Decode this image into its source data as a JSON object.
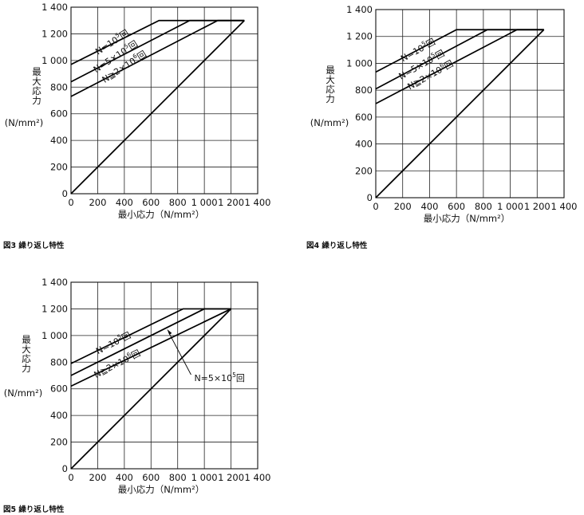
{
  "chart_data": [
    {
      "type": "line",
      "caption": "図3 繰り返し特性",
      "xlabel": "最小応力（N/mm²）",
      "ylabel": "最大応力",
      "yunit": "(N/mm²)",
      "xlim": [
        0,
        1400
      ],
      "ylim": [
        0,
        1400
      ],
      "xticks": [
        "0",
        "200",
        "400",
        "600",
        "800",
        "1 000",
        "1 200",
        "1 400"
      ],
      "yticks": [
        "0",
        "200",
        "400",
        "600",
        "800",
        "1 000",
        "1 200",
        "1 400"
      ],
      "grid": true,
      "series": [
        {
          "name": "N=10⁵回",
          "points": [
            [
              0,
              970
            ],
            [
              660,
              1300
            ],
            [
              1300,
              1300
            ]
          ]
        },
        {
          "name": "N=5×10⁵回",
          "points": [
            [
              0,
              840
            ],
            [
              890,
              1300
            ],
            [
              1300,
              1300
            ]
          ]
        },
        {
          "name": "N≧2×10⁶回",
          "points": [
            [
              0,
              730
            ],
            [
              1100,
              1300
            ],
            [
              1300,
              1300
            ]
          ]
        },
        {
          "name": "",
          "points": [
            [
              0,
              0
            ],
            [
              1300,
              1300
            ]
          ]
        }
      ],
      "labels": [
        {
          "series": 0,
          "main": "N=10",
          "exp": "5",
          "suffix": "回"
        },
        {
          "series": 1,
          "main": "N=5×10",
          "exp": "5",
          "suffix": "回"
        },
        {
          "series": 2,
          "main": "N≧2×10",
          "exp": "6",
          "suffix": "回"
        }
      ]
    },
    {
      "type": "line",
      "caption": "図4 繰り返し特性",
      "xlabel": "最小応力（N/mm²）",
      "ylabel": "最大応力",
      "yunit": "(N/mm²)",
      "xlim": [
        0,
        1400
      ],
      "ylim": [
        0,
        1400
      ],
      "xticks": [
        "0",
        "200",
        "400",
        "600",
        "800",
        "1 000",
        "1 200",
        "1 400"
      ],
      "yticks": [
        "0",
        "200",
        "400",
        "600",
        "800",
        "1 000",
        "1 200",
        "1 400"
      ],
      "grid": true,
      "series": [
        {
          "name": "N=10⁵回",
          "points": [
            [
              0,
              935
            ],
            [
              600,
              1250
            ],
            [
              1250,
              1250
            ]
          ]
        },
        {
          "name": "N=5×10⁵回",
          "points": [
            [
              0,
              810
            ],
            [
              830,
              1250
            ],
            [
              1250,
              1250
            ]
          ]
        },
        {
          "name": "N≧2×10⁶回",
          "points": [
            [
              0,
              700
            ],
            [
              1050,
              1250
            ],
            [
              1250,
              1250
            ]
          ]
        },
        {
          "name": "",
          "points": [
            [
              0,
              0
            ],
            [
              1250,
              1250
            ]
          ]
        }
      ],
      "labels": [
        {
          "series": 0,
          "main": "N=10",
          "exp": "5",
          "suffix": "回"
        },
        {
          "series": 1,
          "main": "N=5×10",
          "exp": "5",
          "suffix": "回"
        },
        {
          "series": 2,
          "main": "N≧2×10",
          "exp": "6",
          "suffix": "回"
        }
      ]
    },
    {
      "type": "line",
      "caption": "図5 繰り返し特性",
      "xlabel": "最小応力（N/mm²）",
      "ylabel": "最大応力",
      "yunit": "(N/mm²)",
      "xlim": [
        0,
        1400
      ],
      "ylim": [
        0,
        1400
      ],
      "xticks": [
        "0",
        "200",
        "400",
        "600",
        "800",
        "1 000",
        "1 200",
        "1 400"
      ],
      "yticks": [
        "0",
        "200",
        "400",
        "600",
        "800",
        "1 000",
        "1 200",
        "1 400"
      ],
      "grid": true,
      "series": [
        {
          "name": "N=10⁵回",
          "points": [
            [
              0,
              790
            ],
            [
              840,
              1200
            ],
            [
              1200,
              1200
            ]
          ]
        },
        {
          "name": "N=5×10⁵回",
          "points": [
            [
              0,
              700
            ],
            [
              1000,
              1200
            ],
            [
              1200,
              1200
            ]
          ]
        },
        {
          "name": "N≧2×10⁶回",
          "points": [
            [
              0,
              620
            ],
            [
              1200,
              1200
            ]
          ]
        },
        {
          "name": "",
          "points": [
            [
              0,
              0
            ],
            [
              1200,
              1200
            ]
          ]
        }
      ],
      "labels": [
        {
          "series": 0,
          "main": "N=10",
          "exp": "5",
          "suffix": "回"
        },
        {
          "series": 2,
          "main": "N≧2×10",
          "exp": "6",
          "suffix": "回"
        },
        {
          "series": 1,
          "main": "N=5×10",
          "exp": "5",
          "suffix": "回",
          "callout": true
        }
      ]
    }
  ]
}
